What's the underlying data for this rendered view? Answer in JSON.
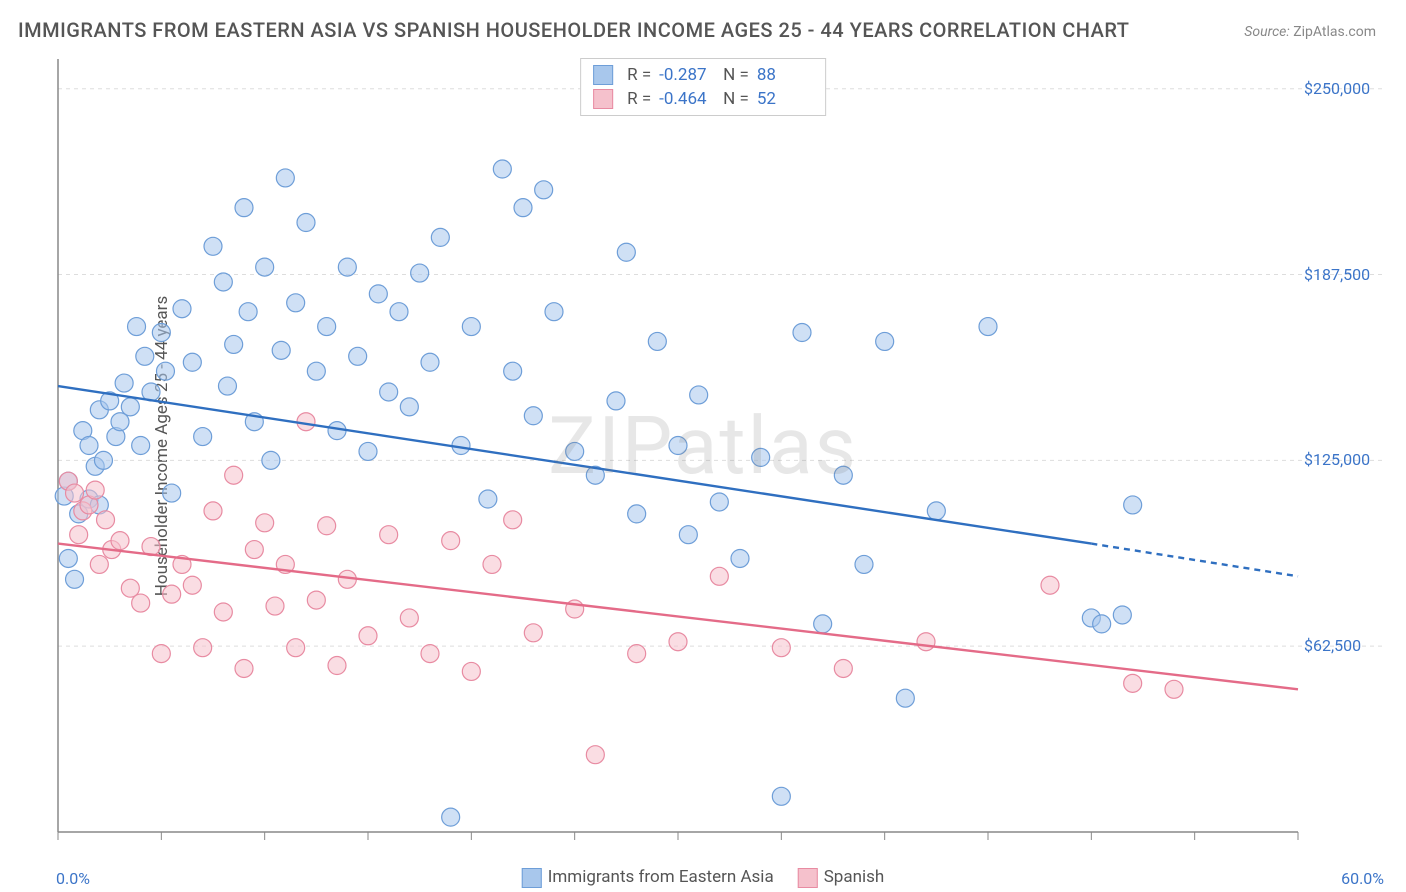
{
  "title": "IMMIGRANTS FROM EASTERN ASIA VS SPANISH HOUSEHOLDER INCOME AGES 25 - 44 YEARS CORRELATION CHART",
  "source_label": "Source:",
  "source_value": "ZipAtlas.com",
  "y_axis_label": "Householder Income Ages 25 - 44 years",
  "watermark": "ZIPatlas",
  "chart": {
    "type": "scatter-with-trend",
    "background_color": "#ffffff",
    "grid_color": "#dddddd",
    "axis_color": "#888888",
    "tick_color": "#888888",
    "x_min_pct": 0.0,
    "x_max_pct": 60.0,
    "x_min_label": "0.0%",
    "x_max_label": "60.0%",
    "x_tick_positions_pct": [
      0,
      5,
      10,
      15,
      20,
      25,
      30,
      35,
      40,
      45,
      50,
      55,
      60
    ],
    "y_min": 0,
    "y_max": 260000,
    "y_ticks": [
      {
        "v": 62500,
        "label": "$62,500"
      },
      {
        "v": 125000,
        "label": "$125,000"
      },
      {
        "v": 187500,
        "label": "$187,500"
      },
      {
        "v": 250000,
        "label": "$250,000"
      }
    ],
    "marker_radius": 9,
    "marker_opacity": 0.55,
    "line_width": 2.4,
    "series": [
      {
        "key": "eastern_asia",
        "label": "Immigrants from Eastern Asia",
        "color_fill": "#a8c7ec",
        "color_stroke": "#6e9ed8",
        "line_color": "#2f6fc0",
        "R": "-0.287",
        "N": "88",
        "trend": {
          "x1_pct": 0,
          "y1": 150000,
          "x2_pct": 50,
          "y2": 97000,
          "extend_to_pct": 60,
          "y_at_extend": 86000
        },
        "points": [
          [
            0.3,
            113000
          ],
          [
            0.5,
            118000
          ],
          [
            0.5,
            92000
          ],
          [
            0.8,
            85000
          ],
          [
            1.0,
            107000
          ],
          [
            1.2,
            135000
          ],
          [
            1.5,
            112000
          ],
          [
            1.5,
            130000
          ],
          [
            1.8,
            123000
          ],
          [
            2.0,
            142000
          ],
          [
            2.0,
            110000
          ],
          [
            2.2,
            125000
          ],
          [
            2.5,
            145000
          ],
          [
            2.8,
            133000
          ],
          [
            3.0,
            138000
          ],
          [
            3.2,
            151000
          ],
          [
            3.5,
            143000
          ],
          [
            3.8,
            170000
          ],
          [
            4.0,
            130000
          ],
          [
            4.2,
            160000
          ],
          [
            4.5,
            148000
          ],
          [
            5.0,
            168000
          ],
          [
            5.2,
            155000
          ],
          [
            5.5,
            114000
          ],
          [
            6.0,
            176000
          ],
          [
            6.5,
            158000
          ],
          [
            7.0,
            133000
          ],
          [
            7.5,
            197000
          ],
          [
            8.0,
            185000
          ],
          [
            8.2,
            150000
          ],
          [
            8.5,
            164000
          ],
          [
            9.0,
            210000
          ],
          [
            9.2,
            175000
          ],
          [
            9.5,
            138000
          ],
          [
            10.0,
            190000
          ],
          [
            10.3,
            125000
          ],
          [
            10.8,
            162000
          ],
          [
            11.0,
            220000
          ],
          [
            11.5,
            178000
          ],
          [
            12.0,
            205000
          ],
          [
            12.5,
            155000
          ],
          [
            13.0,
            170000
          ],
          [
            13.5,
            135000
          ],
          [
            14.0,
            190000
          ],
          [
            14.5,
            160000
          ],
          [
            15.0,
            128000
          ],
          [
            15.5,
            181000
          ],
          [
            16.0,
            148000
          ],
          [
            16.5,
            175000
          ],
          [
            17.0,
            143000
          ],
          [
            17.5,
            188000
          ],
          [
            18.0,
            158000
          ],
          [
            18.5,
            200000
          ],
          [
            19.0,
            5000
          ],
          [
            19.5,
            130000
          ],
          [
            20.0,
            170000
          ],
          [
            20.8,
            112000
          ],
          [
            21.5,
            223000
          ],
          [
            22.0,
            155000
          ],
          [
            22.5,
            210000
          ],
          [
            23.0,
            140000
          ],
          [
            23.5,
            216000
          ],
          [
            24.0,
            175000
          ],
          [
            25.0,
            128000
          ],
          [
            26.0,
            120000
          ],
          [
            27.0,
            145000
          ],
          [
            27.5,
            195000
          ],
          [
            28.0,
            107000
          ],
          [
            29.0,
            165000
          ],
          [
            30.0,
            130000
          ],
          [
            30.5,
            100000
          ],
          [
            31.0,
            147000
          ],
          [
            32.0,
            111000
          ],
          [
            33.0,
            92000
          ],
          [
            34.0,
            126000
          ],
          [
            35.0,
            12000
          ],
          [
            36.0,
            168000
          ],
          [
            37.0,
            70000
          ],
          [
            38.0,
            120000
          ],
          [
            39.0,
            90000
          ],
          [
            40.0,
            165000
          ],
          [
            41.0,
            45000
          ],
          [
            42.5,
            108000
          ],
          [
            45.0,
            170000
          ],
          [
            50.0,
            72000
          ],
          [
            50.5,
            70000
          ],
          [
            51.5,
            73000
          ],
          [
            52.0,
            110000
          ]
        ]
      },
      {
        "key": "spanish",
        "label": "Spanish",
        "color_fill": "#f5c1cc",
        "color_stroke": "#e88ba2",
        "line_color": "#e46b88",
        "R": "-0.464",
        "N": "52",
        "trend": {
          "x1_pct": 0,
          "y1": 97000,
          "x2_pct": 60,
          "y2": 48000
        },
        "points": [
          [
            0.5,
            118000
          ],
          [
            0.8,
            114000
          ],
          [
            1.0,
            100000
          ],
          [
            1.2,
            108000
          ],
          [
            1.5,
            110000
          ],
          [
            1.8,
            115000
          ],
          [
            2.0,
            90000
          ],
          [
            2.3,
            105000
          ],
          [
            2.6,
            95000
          ],
          [
            3.0,
            98000
          ],
          [
            3.5,
            82000
          ],
          [
            4.0,
            77000
          ],
          [
            4.5,
            96000
          ],
          [
            5.0,
            60000
          ],
          [
            5.5,
            80000
          ],
          [
            6.0,
            90000
          ],
          [
            6.5,
            83000
          ],
          [
            7.0,
            62000
          ],
          [
            7.5,
            108000
          ],
          [
            8.0,
            74000
          ],
          [
            8.5,
            120000
          ],
          [
            9.0,
            55000
          ],
          [
            9.5,
            95000
          ],
          [
            10.0,
            104000
          ],
          [
            10.5,
            76000
          ],
          [
            11.0,
            90000
          ],
          [
            11.5,
            62000
          ],
          [
            12.0,
            138000
          ],
          [
            12.5,
            78000
          ],
          [
            13.0,
            103000
          ],
          [
            13.5,
            56000
          ],
          [
            14.0,
            85000
          ],
          [
            15.0,
            66000
          ],
          [
            16.0,
            100000
          ],
          [
            17.0,
            72000
          ],
          [
            18.0,
            60000
          ],
          [
            19.0,
            98000
          ],
          [
            20.0,
            54000
          ],
          [
            21.0,
            90000
          ],
          [
            22.0,
            105000
          ],
          [
            23.0,
            67000
          ],
          [
            25.0,
            75000
          ],
          [
            26.0,
            26000
          ],
          [
            28.0,
            60000
          ],
          [
            30.0,
            64000
          ],
          [
            32.0,
            86000
          ],
          [
            35.0,
            62000
          ],
          [
            38.0,
            55000
          ],
          [
            42.0,
            64000
          ],
          [
            48.0,
            83000
          ],
          [
            52.0,
            50000
          ],
          [
            54.0,
            48000
          ]
        ]
      }
    ],
    "legend_top": {
      "R_label": "R",
      "N_label": "N",
      "eq": "="
    },
    "legend_bottom_order": [
      "eastern_asia",
      "spanish"
    ]
  }
}
